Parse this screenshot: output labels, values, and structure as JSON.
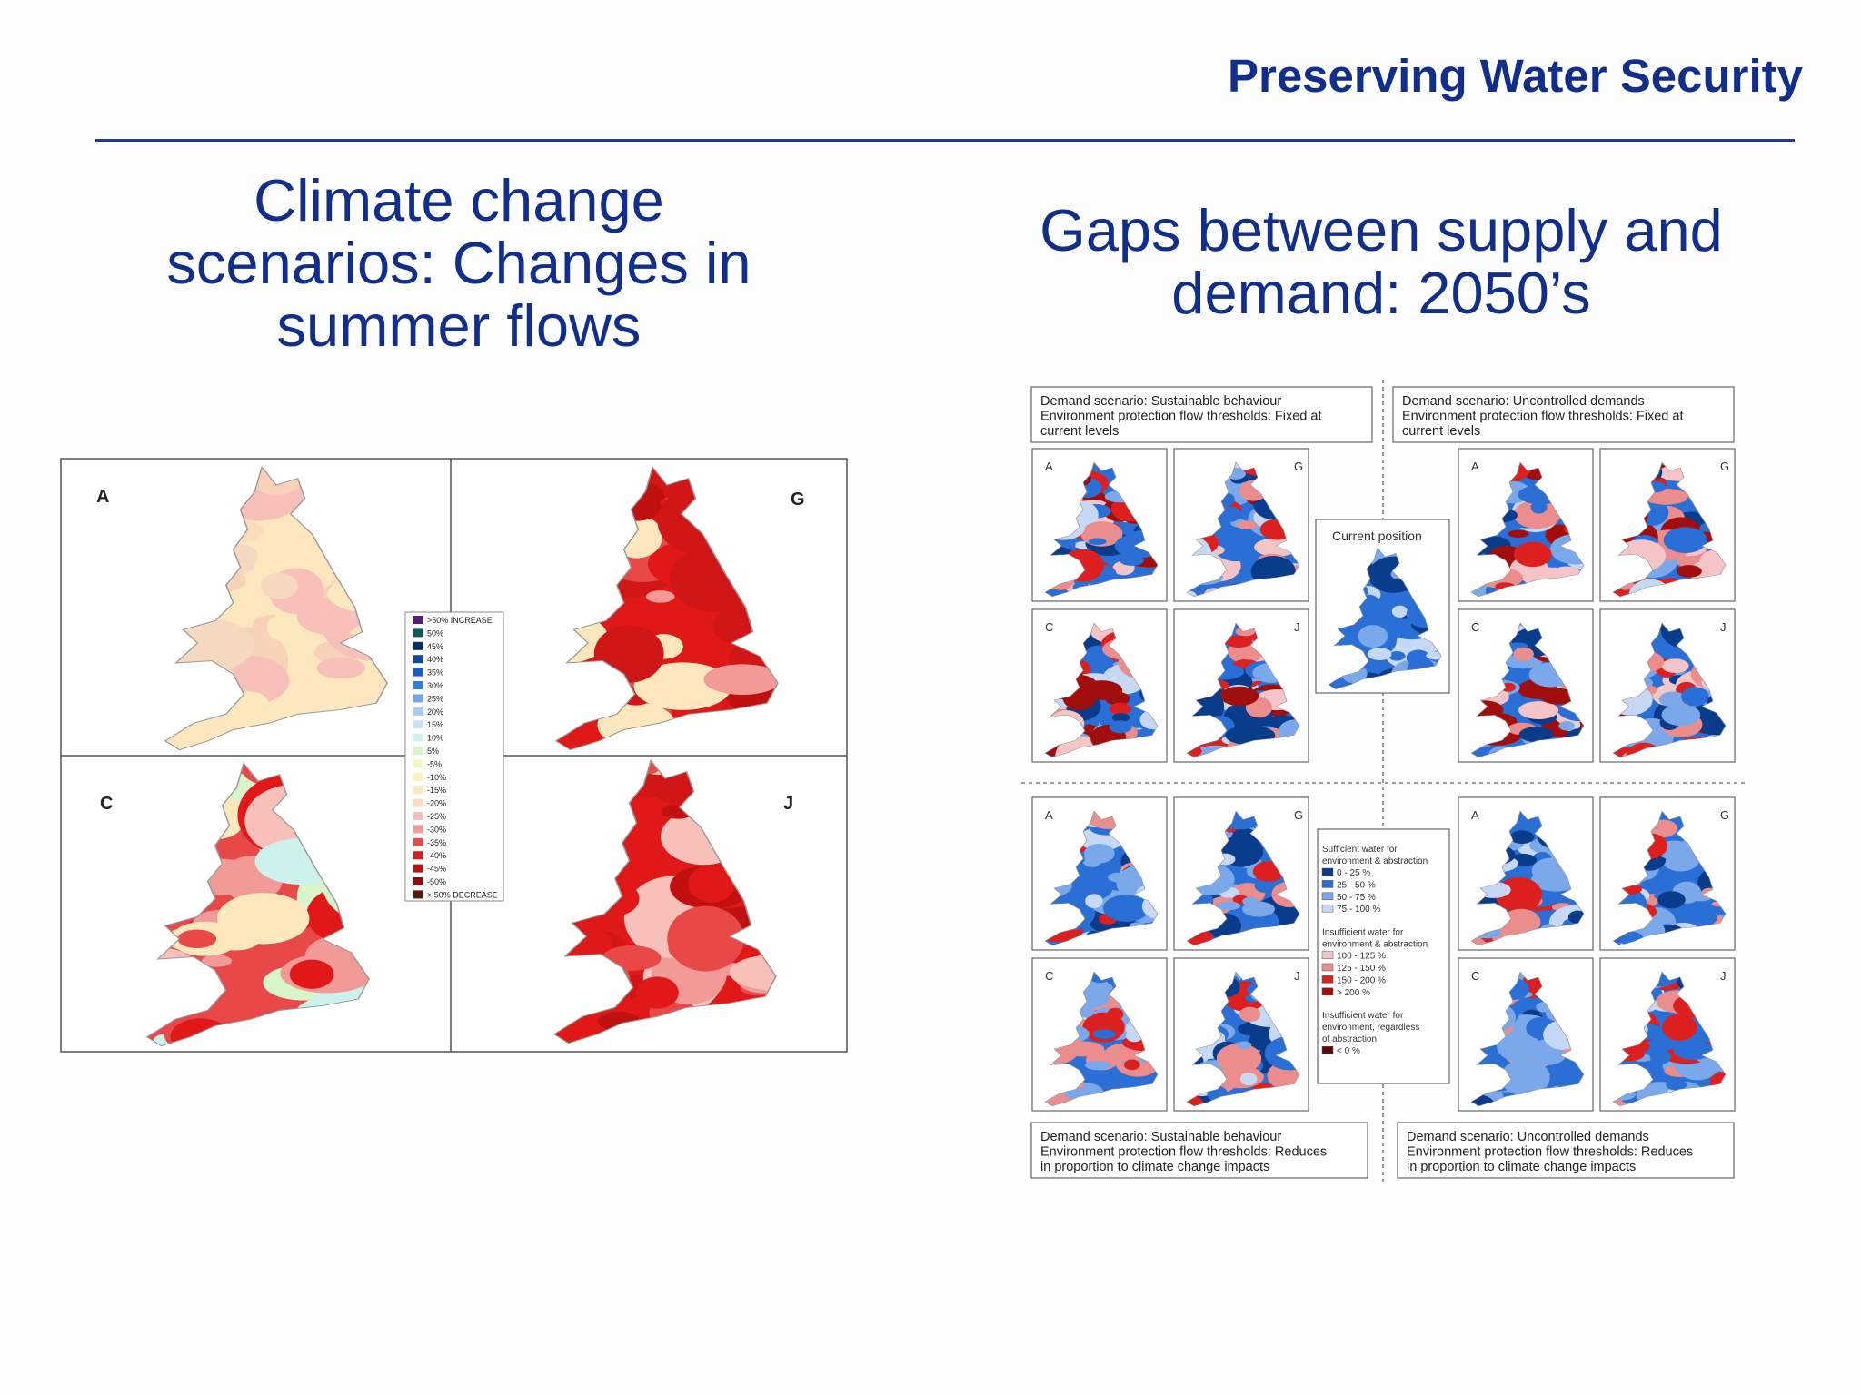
{
  "slide": {
    "title": "Preserving Water Security"
  },
  "left": {
    "heading": "Climate change scenarios: Changes in summer flows",
    "panels": [
      "A",
      "G",
      "C",
      "J"
    ],
    "legend": [
      {
        "label": ">50% INCREASE",
        "color": "#5b1a7c"
      },
      {
        "label": "50%",
        "color": "#0d5a5a"
      },
      {
        "label": "45%",
        "color": "#0a2f6e"
      },
      {
        "label": "40%",
        "color": "#0e4aa0"
      },
      {
        "label": "35%",
        "color": "#1660c8"
      },
      {
        "label": "30%",
        "color": "#2d7fe0"
      },
      {
        "label": "25%",
        "color": "#6fa8ee"
      },
      {
        "label": "20%",
        "color": "#a9cbf3"
      },
      {
        "label": "15%",
        "color": "#c9e3f7"
      },
      {
        "label": "10%",
        "color": "#cdf2ee"
      },
      {
        "label": "5%",
        "color": "#d8f5c9"
      },
      {
        "label": "-5%",
        "color": "#eef7c0"
      },
      {
        "label": "-10%",
        "color": "#f8f3bd"
      },
      {
        "label": "-15%",
        "color": "#fbe9bd"
      },
      {
        "label": "-20%",
        "color": "#fbdcbc"
      },
      {
        "label": "-25%",
        "color": "#f7c0bb"
      },
      {
        "label": "-30%",
        "color": "#f29a97"
      },
      {
        "label": "-35%",
        "color": "#e84848"
      },
      {
        "label": "-40%",
        "color": "#e01818"
      },
      {
        "label": "-45%",
        "color": "#c01010"
      },
      {
        "label": "-50%",
        "color": "#8e0c0c"
      },
      {
        "label": "> 50% DECREASE",
        "color": "#5a1a0a"
      }
    ]
  },
  "right": {
    "heading": "Gaps between supply and demand: 2050’s",
    "current_position": "Current position",
    "top_left_box": [
      "Demand scenario: Sustainable behaviour",
      "Environment protection flow thresholds: Fixed at",
      "current levels"
    ],
    "top_right_box": [
      "Demand scenario: Uncontrolled demands",
      "Environment protection flow thresholds: Fixed at",
      "current levels"
    ],
    "bottom_left_box": [
      "Demand scenario: Sustainable behaviour",
      "Environment protection flow thresholds: Reduces",
      "in proportion to climate change impacts"
    ],
    "bottom_right_box": [
      "Demand scenario: Uncontrolled demands",
      "Environment protection flow thresholds: Reduces",
      "in proportion to climate change impacts"
    ],
    "panel_letters": [
      "A",
      "G",
      "C",
      "J"
    ],
    "legend": {
      "sufficient_heading": [
        "Sufficient water for",
        "environment & abstraction"
      ],
      "sufficient": [
        {
          "label": "0 - 25 %",
          "color": "#0a3c8c"
        },
        {
          "label": "25 - 50 %",
          "color": "#2a6fd6"
        },
        {
          "label": "50 - 75 %",
          "color": "#7aa8ea"
        },
        {
          "label": "75 - 100 %",
          "color": "#c6d8f4"
        }
      ],
      "insufficient_heading": [
        "Insufficient water for",
        "environment & abstraction"
      ],
      "insufficient": [
        {
          "label": "100 - 125 %",
          "color": "#f4c4c6"
        },
        {
          "label": "125 - 150 %",
          "color": "#eb8d8d"
        },
        {
          "label": "150 - 200 %",
          "color": "#dc2020"
        },
        {
          "label": "> 200 %",
          "color": "#a00e0e"
        }
      ],
      "regardless_heading": [
        "Insufficient water for",
        "environment, regardless",
        "of abstraction"
      ],
      "regardless": [
        {
          "label": "< 0 %",
          "color": "#5a0808"
        }
      ]
    }
  }
}
